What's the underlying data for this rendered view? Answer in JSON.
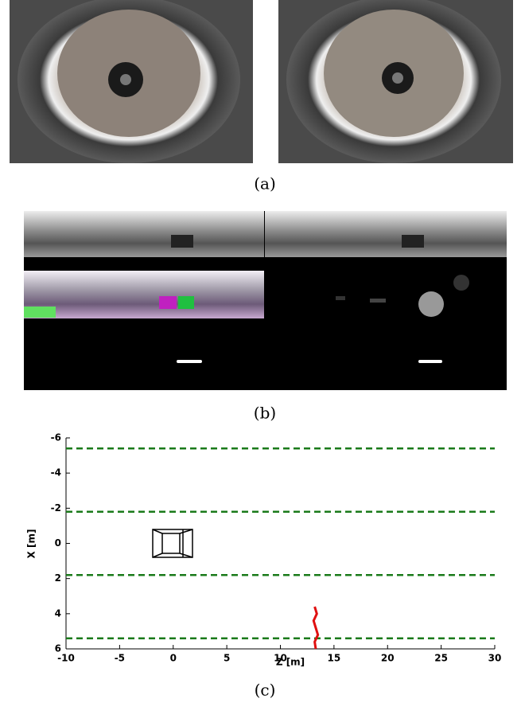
{
  "captions": [
    "(a)",
    "(b)",
    "(c)"
  ],
  "chart_data": {
    "type": "line",
    "xlabel": "Z [m]",
    "ylabel": "X [m]",
    "xlim": [
      -10,
      30
    ],
    "ylim": [
      -6,
      6
    ],
    "y_inverted": true,
    "xticks": [
      -10,
      -5,
      0,
      5,
      10,
      15,
      20,
      25,
      30
    ],
    "yticks": [
      -6,
      -4,
      -2,
      0,
      2,
      4,
      6
    ],
    "series": [
      {
        "color": "#1a7a1a",
        "dashed": true,
        "x": [
          -10,
          30
        ],
        "values": [
          -5.4,
          -5.4
        ]
      },
      {
        "color": "#1a7a1a",
        "dashed": true,
        "x": [
          -10,
          30
        ],
        "values": [
          -1.8,
          -1.8
        ]
      },
      {
        "color": "#1a7a1a",
        "dashed": true,
        "x": [
          -10,
          30
        ],
        "values": [
          1.8,
          1.8
        ]
      },
      {
        "color": "#1a7a1a",
        "dashed": true,
        "x": [
          -10,
          30
        ],
        "values": [
          5.4,
          5.4
        ]
      },
      {
        "color": "#e01010",
        "dashed": false,
        "x": [
          13.2,
          13.4,
          13.1,
          13.3,
          13.5,
          13.2,
          13.3
        ],
        "values": [
          3.6,
          4.0,
          4.4,
          4.8,
          5.2,
          5.6,
          6.0
        ]
      }
    ]
  }
}
